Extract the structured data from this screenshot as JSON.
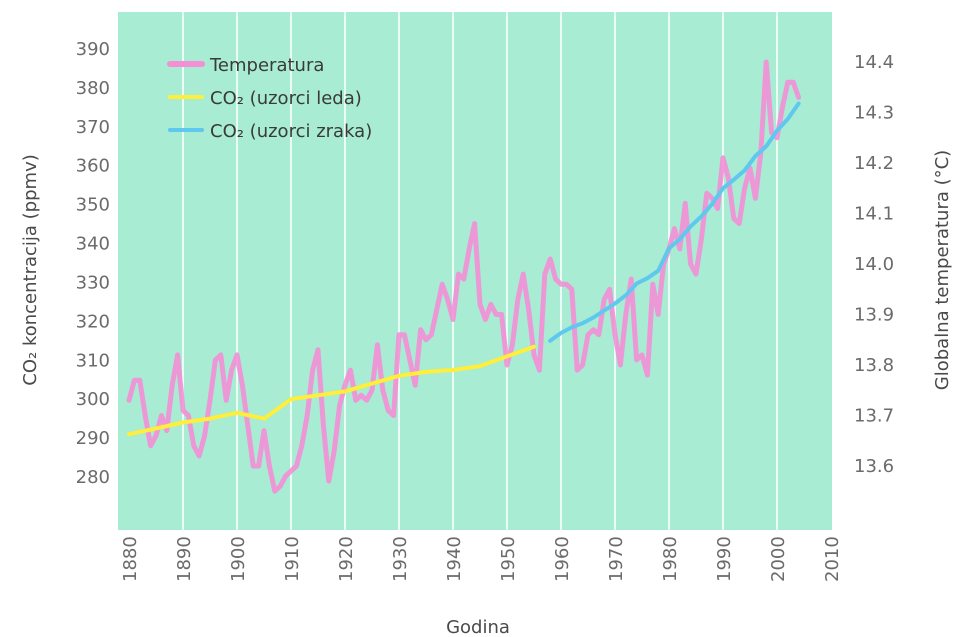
{
  "chart_data": {
    "type": "line",
    "xlabel": "Godina",
    "ylabel_left": "CO₂ koncentracija (ppmv)",
    "ylabel_right": "Globalna temperatura (°C)",
    "xlim": [
      1880,
      2010
    ],
    "ylim_left": [
      270,
      395
    ],
    "ylim_right": [
      13.5,
      14.45
    ],
    "x_ticks": [
      1880,
      1890,
      1900,
      1910,
      1920,
      1930,
      1940,
      1950,
      1960,
      1970,
      1980,
      1990,
      2000,
      2010
    ],
    "y_left_ticks": [
      280,
      290,
      300,
      310,
      320,
      330,
      340,
      350,
      360,
      370,
      380,
      390
    ],
    "y_right_ticks": [
      "13.6",
      "13.7",
      "13.8",
      "13.9",
      "14.0",
      "14.1",
      "14.2",
      "14.3",
      "14.4"
    ],
    "grid": "vertical",
    "legend_position": "top-left",
    "colors": {
      "background": "#a8ecd4",
      "grid": "#ffffff",
      "temperature": "#f48fd6",
      "co2_ice": "#ffee3a",
      "co2_air": "#5fc8ee"
    },
    "series": [
      {
        "name": "Temperatura",
        "axis": "right",
        "x": [
          1880,
          1881,
          1882,
          1883,
          1884,
          1885,
          1886,
          1887,
          1888,
          1889,
          1890,
          1891,
          1892,
          1893,
          1894,
          1895,
          1896,
          1897,
          1898,
          1899,
          1900,
          1901,
          1902,
          1903,
          1904,
          1905,
          1906,
          1907,
          1908,
          1909,
          1910,
          1911,
          1912,
          1913,
          1914,
          1915,
          1916,
          1917,
          1918,
          1919,
          1920,
          1921,
          1922,
          1923,
          1924,
          1925,
          1926,
          1927,
          1928,
          1929,
          1930,
          1931,
          1932,
          1933,
          1934,
          1935,
          1936,
          1937,
          1938,
          1939,
          1940,
          1941,
          1942,
          1943,
          1944,
          1945,
          1946,
          1947,
          1948,
          1949,
          1950,
          1951,
          1952,
          1953,
          1954,
          1955,
          1956,
          1957,
          1958,
          1959,
          1960,
          1961,
          1962,
          1963,
          1964,
          1965,
          1966,
          1967,
          1968,
          1969,
          1970,
          1971,
          1972,
          1973,
          1974,
          1975,
          1976,
          1977,
          1978,
          1979,
          1980,
          1981,
          1982,
          1983,
          1984,
          1985,
          1986,
          1987,
          1988,
          1989,
          1990,
          1991,
          1992,
          1993,
          1994,
          1995,
          1996,
          1997,
          1998,
          1999,
          2000,
          2001,
          2002,
          2003,
          2004
        ],
        "values": [
          13.73,
          13.77,
          13.77,
          13.7,
          13.64,
          13.66,
          13.7,
          13.67,
          13.76,
          13.82,
          13.71,
          13.7,
          13.64,
          13.62,
          13.66,
          13.73,
          13.81,
          13.82,
          13.73,
          13.79,
          13.82,
          13.76,
          13.68,
          13.6,
          13.6,
          13.67,
          13.6,
          13.55,
          13.56,
          13.58,
          13.59,
          13.6,
          13.64,
          13.7,
          13.79,
          13.83,
          13.68,
          13.57,
          13.63,
          13.72,
          13.76,
          13.79,
          13.73,
          13.74,
          13.73,
          13.75,
          13.84,
          13.75,
          13.71,
          13.7,
          13.86,
          13.86,
          13.81,
          13.76,
          13.87,
          13.85,
          13.86,
          13.91,
          13.96,
          13.93,
          13.89,
          13.98,
          13.97,
          14.03,
          14.08,
          13.92,
          13.89,
          13.92,
          13.9,
          13.9,
          13.8,
          13.84,
          13.93,
          13.98,
          13.91,
          13.82,
          13.79,
          13.98,
          14.01,
          13.97,
          13.96,
          13.96,
          13.95,
          13.79,
          13.8,
          13.86,
          13.87,
          13.86,
          13.93,
          13.95,
          13.86,
          13.8,
          13.9,
          13.97,
          13.81,
          13.82,
          13.78,
          13.96,
          13.9,
          14.0,
          14.03,
          14.07,
          14.03,
          14.12,
          14.0,
          13.98,
          14.05,
          14.14,
          14.13,
          14.11,
          14.21,
          14.17,
          14.09,
          14.08,
          14.15,
          14.19,
          14.13,
          14.22,
          14.4,
          14.26,
          14.25,
          14.31,
          14.36,
          14.36,
          14.33
        ]
      },
      {
        "name": "CO₂ (uzorci leda)",
        "axis": "left",
        "x": [
          1880,
          1885,
          1890,
          1895,
          1900,
          1905,
          1910,
          1915,
          1920,
          1925,
          1930,
          1935,
          1940,
          1945,
          1950,
          1955
        ],
        "values": [
          291,
          292.5,
          294,
          295,
          296.5,
          295,
          300,
          301,
          302,
          304,
          306,
          307,
          307.5,
          308.5,
          311,
          313.5
        ]
      },
      {
        "name": "CO₂ (uzorci zraka)",
        "axis": "left",
        "x": [
          1958,
          1960,
          1962,
          1964,
          1966,
          1968,
          1970,
          1972,
          1974,
          1976,
          1978,
          1980,
          1982,
          1984,
          1986,
          1988,
          1990,
          1992,
          1994,
          1996,
          1998,
          2000,
          2002,
          2004
        ],
        "values": [
          315,
          317,
          318.5,
          319.5,
          321,
          322.8,
          324.6,
          326.7,
          329.7,
          331.1,
          333,
          338.8,
          341.1,
          344.4,
          347,
          350.2,
          354.2,
          356.4,
          358.8,
          362.5,
          365,
          369,
          372,
          376
        ]
      }
    ]
  }
}
